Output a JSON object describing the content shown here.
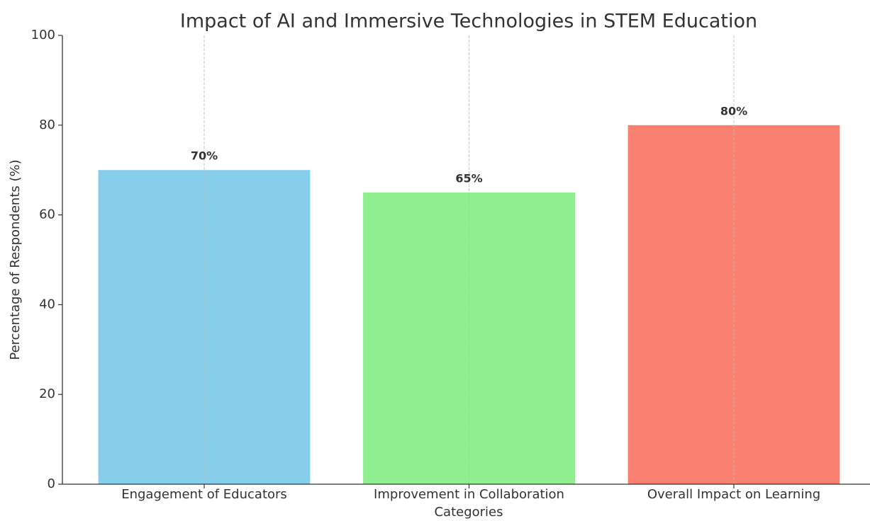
{
  "chart_data": {
    "type": "bar",
    "title": "Impact of AI and Immersive Technologies in STEM Education",
    "xlabel": "Categories",
    "ylabel": "Percentage of Respondents (%)",
    "categories": [
      "Engagement of Educators",
      "Improvement in Collaboration",
      "Overall Impact on Learning"
    ],
    "values": [
      70,
      65,
      80
    ],
    "value_labels": [
      "70%",
      "65%",
      "80%"
    ],
    "colors": [
      "#87ceeb",
      "#90ee90",
      "#fa8072"
    ],
    "ylim": [
      0,
      100
    ],
    "yticks": [
      0,
      20,
      40,
      60,
      80,
      100
    ],
    "grid": "x"
  }
}
